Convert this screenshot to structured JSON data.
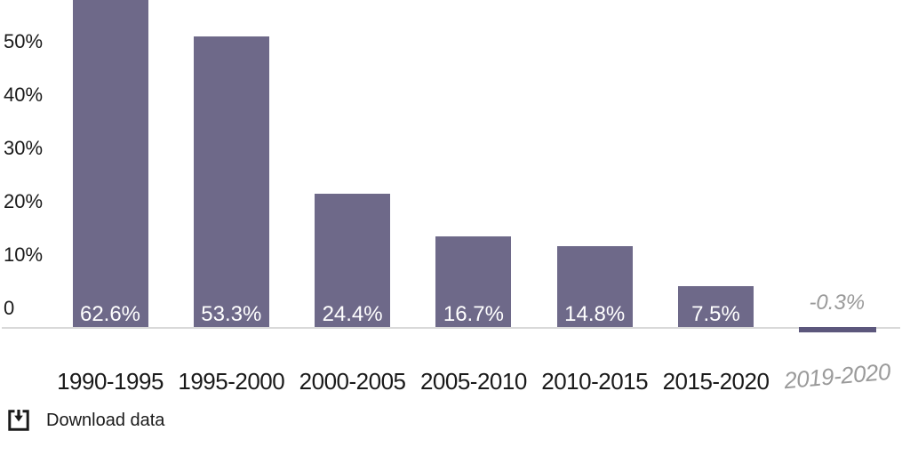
{
  "chart_data": {
    "type": "bar",
    "title": "",
    "categories": [
      "1990-1995",
      "1995-2000",
      "2000-2005",
      "2005-2010",
      "2010-2015",
      "2015-2020",
      "2019-2020"
    ],
    "values": [
      62.6,
      53.3,
      24.4,
      16.7,
      14.8,
      7.5,
      -0.3
    ],
    "bar_labels": [
      "62.6%",
      "53.3%",
      "24.4%",
      "16.7%",
      "14.8%",
      "7.5%",
      "-0.3%"
    ],
    "muted": [
      false,
      false,
      false,
      false,
      false,
      false,
      true
    ],
    "y_axis_ticks": [
      "50%",
      "40%",
      "30%",
      "20%",
      "10%",
      "0"
    ],
    "ylim": [
      -2,
      63
    ],
    "grid": false,
    "legend": null,
    "layout_hint": "first bar (62.6%) is clipped at the top edge of the frame; last category is a negative sliver below the baseline with gray italic labels",
    "colors": {
      "bar": "#6e6989",
      "negative_bar": "#5c577c",
      "axis_line": "#d9d9d9",
      "label_text": "#1a1a1a",
      "muted_text": "#9a9a9a",
      "bar_value_text": "#ffffff"
    }
  },
  "footer": {
    "download_label": "Download data"
  }
}
